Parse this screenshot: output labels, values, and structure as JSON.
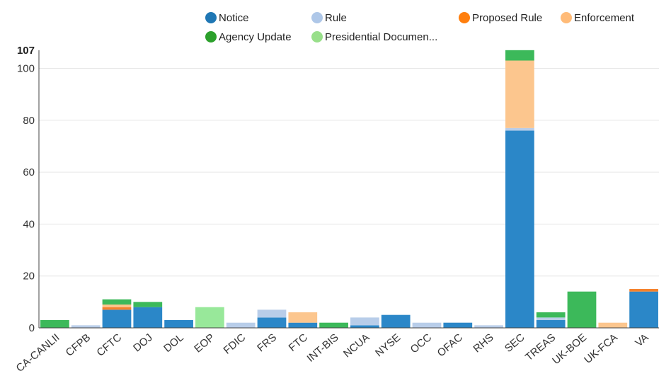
{
  "chart_data": {
    "type": "bar",
    "stacked": true,
    "categories": [
      "CA-CANLII",
      "CFPB",
      "CFTC",
      "DOJ",
      "DOL",
      "EOP",
      "FDIC",
      "FRS",
      "FTC",
      "INT-BIS",
      "NCUA",
      "NYSE",
      "OCC",
      "OFAC",
      "RHS",
      "SEC",
      "TREAS",
      "UK-BOE",
      "UK-FCA",
      "VA"
    ],
    "series": [
      {
        "name": "Notice",
        "color": "#2b87c8",
        "legend_color": "#1f77b4",
        "values": [
          0,
          0,
          7,
          8,
          3,
          0,
          0,
          4,
          2,
          0,
          1,
          5,
          0,
          2,
          0,
          76,
          3,
          0,
          0,
          14
        ]
      },
      {
        "name": "Rule",
        "color": "#b8cde9",
        "legend_color": "#aec7e8",
        "values": [
          0,
          1,
          0,
          0,
          0,
          0,
          2,
          3,
          0,
          0,
          3,
          0,
          2,
          0,
          1,
          1,
          1,
          0,
          0,
          0
        ]
      },
      {
        "name": "Proposed Rule",
        "color": "#f5822c",
        "legend_color": "#ff7f0e",
        "values": [
          0,
          0,
          1,
          0,
          0,
          0,
          0,
          0,
          0,
          0,
          0,
          0,
          0,
          0,
          0,
          0,
          0,
          0,
          0,
          1
        ]
      },
      {
        "name": "Enforcement",
        "color": "#fcc68e",
        "legend_color": "#ffbb78",
        "values": [
          0,
          0,
          1,
          0,
          0,
          0,
          0,
          0,
          4,
          0,
          0,
          0,
          0,
          0,
          0,
          26,
          0,
          0,
          2,
          0
        ]
      },
      {
        "name": "Agency Update",
        "color": "#3cb95a",
        "legend_color": "#2ca02c",
        "values": [
          3,
          0,
          2,
          2,
          0,
          0,
          0,
          0,
          0,
          2,
          0,
          0,
          0,
          0,
          0,
          4,
          2,
          14,
          0,
          0
        ]
      },
      {
        "name": "Presidential Documen...",
        "color": "#98e89a",
        "legend_color": "#98df8a",
        "values": [
          0,
          0,
          0,
          0,
          0,
          8,
          0,
          0,
          0,
          0,
          0,
          0,
          0,
          0,
          0,
          0,
          0,
          0,
          0,
          0
        ]
      }
    ],
    "yticks": [
      0,
      20,
      40,
      60,
      80,
      100
    ],
    "ymax_label": "107",
    "ylim": [
      0,
      107
    ],
    "grid": true,
    "legend_position": "top"
  }
}
